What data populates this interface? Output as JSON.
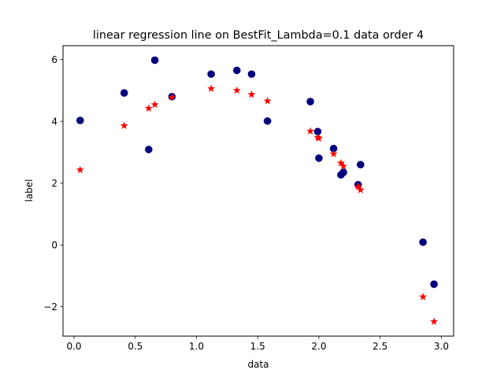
{
  "chart_data": {
    "type": "scatter",
    "title": "linear regression line on BestFit_Lambda=0.1 data order 4",
    "xlabel": "data",
    "ylabel": "label",
    "xlim": [
      -0.09,
      3.1
    ],
    "ylim": [
      -2.95,
      6.45
    ],
    "x_ticks": [
      0.0,
      0.5,
      1.0,
      1.5,
      2.0,
      2.5,
      3.0
    ],
    "x_tick_labels": [
      "0.0",
      "0.5",
      "1.0",
      "1.5",
      "2.0",
      "2.5",
      "3.0"
    ],
    "y_ticks": [
      -2,
      0,
      2,
      4,
      6
    ],
    "y_tick_labels": [
      "−2",
      "0",
      "2",
      "4",
      "6"
    ],
    "grid": false,
    "legend": "none",
    "series": [
      {
        "marker": "circle",
        "color": "#00007f",
        "points": [
          [
            0.05,
            4.03
          ],
          [
            0.41,
            4.92
          ],
          [
            0.61,
            3.09
          ],
          [
            0.66,
            5.98
          ],
          [
            0.8,
            4.8
          ],
          [
            1.12,
            5.53
          ],
          [
            1.33,
            5.65
          ],
          [
            1.45,
            5.53
          ],
          [
            1.58,
            4.01
          ],
          [
            1.93,
            4.64
          ],
          [
            1.99,
            3.67
          ],
          [
            2.0,
            2.81
          ],
          [
            2.12,
            3.12
          ],
          [
            2.18,
            2.27
          ],
          [
            2.2,
            2.35
          ],
          [
            2.32,
            1.95
          ],
          [
            2.34,
            2.6
          ],
          [
            2.85,
            0.09
          ],
          [
            2.94,
            -1.27
          ]
        ]
      },
      {
        "marker": "star",
        "color": "#ff0000",
        "points": [
          [
            0.05,
            2.43
          ],
          [
            0.41,
            3.86
          ],
          [
            0.61,
            4.42
          ],
          [
            0.66,
            4.54
          ],
          [
            0.8,
            4.78
          ],
          [
            1.12,
            5.06
          ],
          [
            1.33,
            5.0
          ],
          [
            1.45,
            4.87
          ],
          [
            1.58,
            4.66
          ],
          [
            1.93,
            3.68
          ],
          [
            1.99,
            3.48
          ],
          [
            2.0,
            3.45
          ],
          [
            2.12,
            2.95
          ],
          [
            2.18,
            2.65
          ],
          [
            2.2,
            2.55
          ],
          [
            2.32,
            1.89
          ],
          [
            2.34,
            1.78
          ],
          [
            2.85,
            -1.68
          ],
          [
            2.94,
            -2.48
          ]
        ]
      }
    ]
  }
}
